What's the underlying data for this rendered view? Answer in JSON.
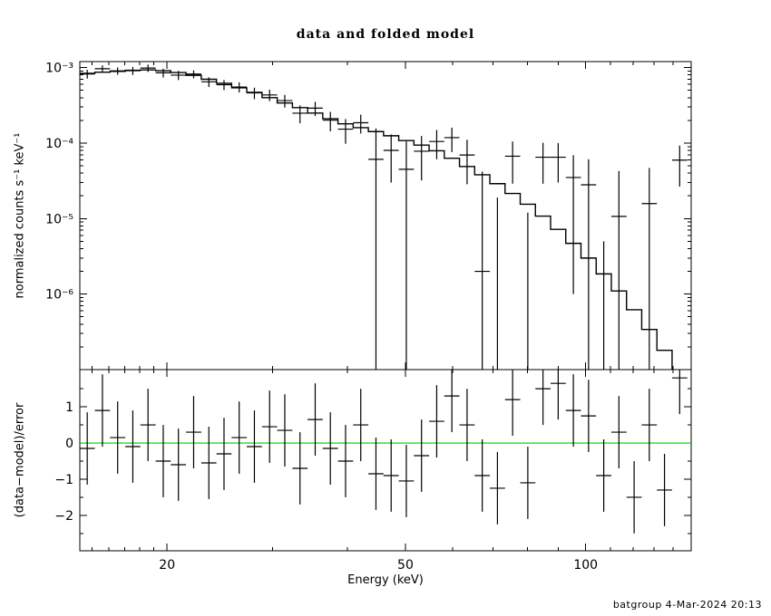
{
  "header": {
    "title": "data and folded model"
  },
  "footer": {
    "credit": "batgroup  4-Mar-2024 20:13"
  },
  "chart_data": {
    "type": "scatter",
    "subtype": "xspec-counts-spectrum-with-residuals",
    "title": "data and folded model",
    "xlabel": "Energy (keV)",
    "ylabel_top": "normalized counts s⁻¹ keV⁻¹",
    "ylabel_bottom": "(data−model)/error",
    "xscale": "log",
    "xlim": [
      14.3,
      150
    ],
    "xticks_major": [
      20,
      50,
      100
    ],
    "xticks_minor": [
      15,
      16,
      17,
      18,
      19,
      30,
      40,
      60,
      70,
      80,
      90,
      110,
      120,
      130,
      140
    ],
    "top_panel": {
      "yscale": "log",
      "ylim": [
        1e-07,
        0.0012
      ],
      "ytick_exponents": [
        -3,
        -4,
        -5,
        -6
      ]
    },
    "bottom_panel": {
      "ylim": [
        -2.98,
        2.03
      ],
      "yticks": [
        1,
        0,
        -1,
        -2
      ],
      "yticks_minor": [
        1.5,
        0.5,
        -0.5,
        -1.5,
        -2.5
      ],
      "residual_error": 1
    },
    "colors": {
      "data": "#000000",
      "model": "#000000",
      "zero_line": "#00c800"
    },
    "bin_edges": [
      14.29,
      15.15,
      16.06,
      17.03,
      18.05,
      19.14,
      20.29,
      21.51,
      22.81,
      24.18,
      25.63,
      27.17,
      28.81,
      30.54,
      32.38,
      34.33,
      36.39,
      38.58,
      40.9,
      43.36,
      45.97,
      48.73,
      51.66,
      54.77,
      58.06,
      61.55,
      65.25,
      69.17,
      73.33,
      77.74,
      82.41,
      87.37,
      92.62,
      98.19,
      104.1,
      110.35,
      116.99,
      124.02,
      131.48,
      139.38,
      147.76
    ],
    "series": {
      "model": [
        0.00084,
        0.00087,
        0.00089,
        0.00092,
        0.00093,
        0.00091,
        0.00086,
        0.00079,
        0.0007,
        0.00062,
        0.00054,
        0.00047,
        0.0004,
        0.00034,
        0.000295,
        0.00025,
        0.00021,
        0.00018,
        0.00016,
        0.000142,
        0.000125,
        0.000108,
        9.4e-05,
        7.9e-05,
        6.3e-05,
        4.9e-05,
        3.8e-05,
        2.9e-05,
        2.15e-05,
        1.55e-05,
        1.08e-05,
        7.2e-06,
        4.7e-06,
        3e-06,
        1.85e-06,
        1.1e-06,
        6.2e-07,
        3.4e-07,
        1.8e-07,
        9e-08
      ],
      "data": [
        0.000824,
        0.000965,
        0.000905,
        0.000909,
        0.000985,
        0.000853,
        0.000794,
        0.00082,
        0.000648,
        0.000593,
        0.000553,
        0.000462,
        0.000434,
        0.000365,
        0.000249,
        0.00029,
        0.000201,
        0.000153,
        0.000186,
        6.1e-05,
        8e-05,
        4.5e-05,
        7.8e-05,
        0.000105,
        0.000118,
        6.95e-05,
        2e-06,
        -2e-05,
        6.7e-05,
        -2.5e-05,
        6.5e-05,
        6.5e-05,
        3.5e-05,
        2.8e-05,
        -2.7e-05,
        1.07e-05,
        -4.6e-05,
        1.58e-05,
        -4e-05,
        5.95e-05
      ],
      "error": [
        0.00011,
        0.000105,
        0.0001,
        0.00011,
        0.00011,
        0.000115,
        0.00011,
        0.0001,
        9.5e-05,
        9e-05,
        8.5e-05,
        8e-05,
        7.5e-05,
        7e-05,
        6.6e-05,
        6.2e-05,
        5.8e-05,
        5.5e-05,
        5.2e-05,
        9.5e-05,
        5e-05,
        6e-05,
        4.6e-05,
        4.4e-05,
        4.2e-05,
        4.1e-05,
        4e-05,
        3.9e-05,
        3.8e-05,
        3.7e-05,
        3.6e-05,
        3.5e-05,
        3.4e-05,
        3.3e-05,
        3.2e-05,
        3.2e-05,
        3.1e-05,
        3.1e-05,
        3.1e-05,
        3.3e-05
      ],
      "residual": [
        -0.15,
        0.9,
        0.15,
        -0.1,
        0.5,
        -0.5,
        -0.6,
        0.3,
        -0.55,
        -0.3,
        0.15,
        -0.1,
        0.45,
        0.35,
        -0.7,
        0.65,
        -0.15,
        -0.5,
        0.5,
        -0.85,
        -0.9,
        -1.05,
        -0.35,
        0.6,
        1.3,
        0.5,
        -0.9,
        -1.25,
        1.2,
        -1.1,
        1.5,
        1.65,
        0.9,
        0.75,
        -0.9,
        0.3,
        -1.5,
        0.5,
        -1.3,
        1.8
      ]
    }
  }
}
